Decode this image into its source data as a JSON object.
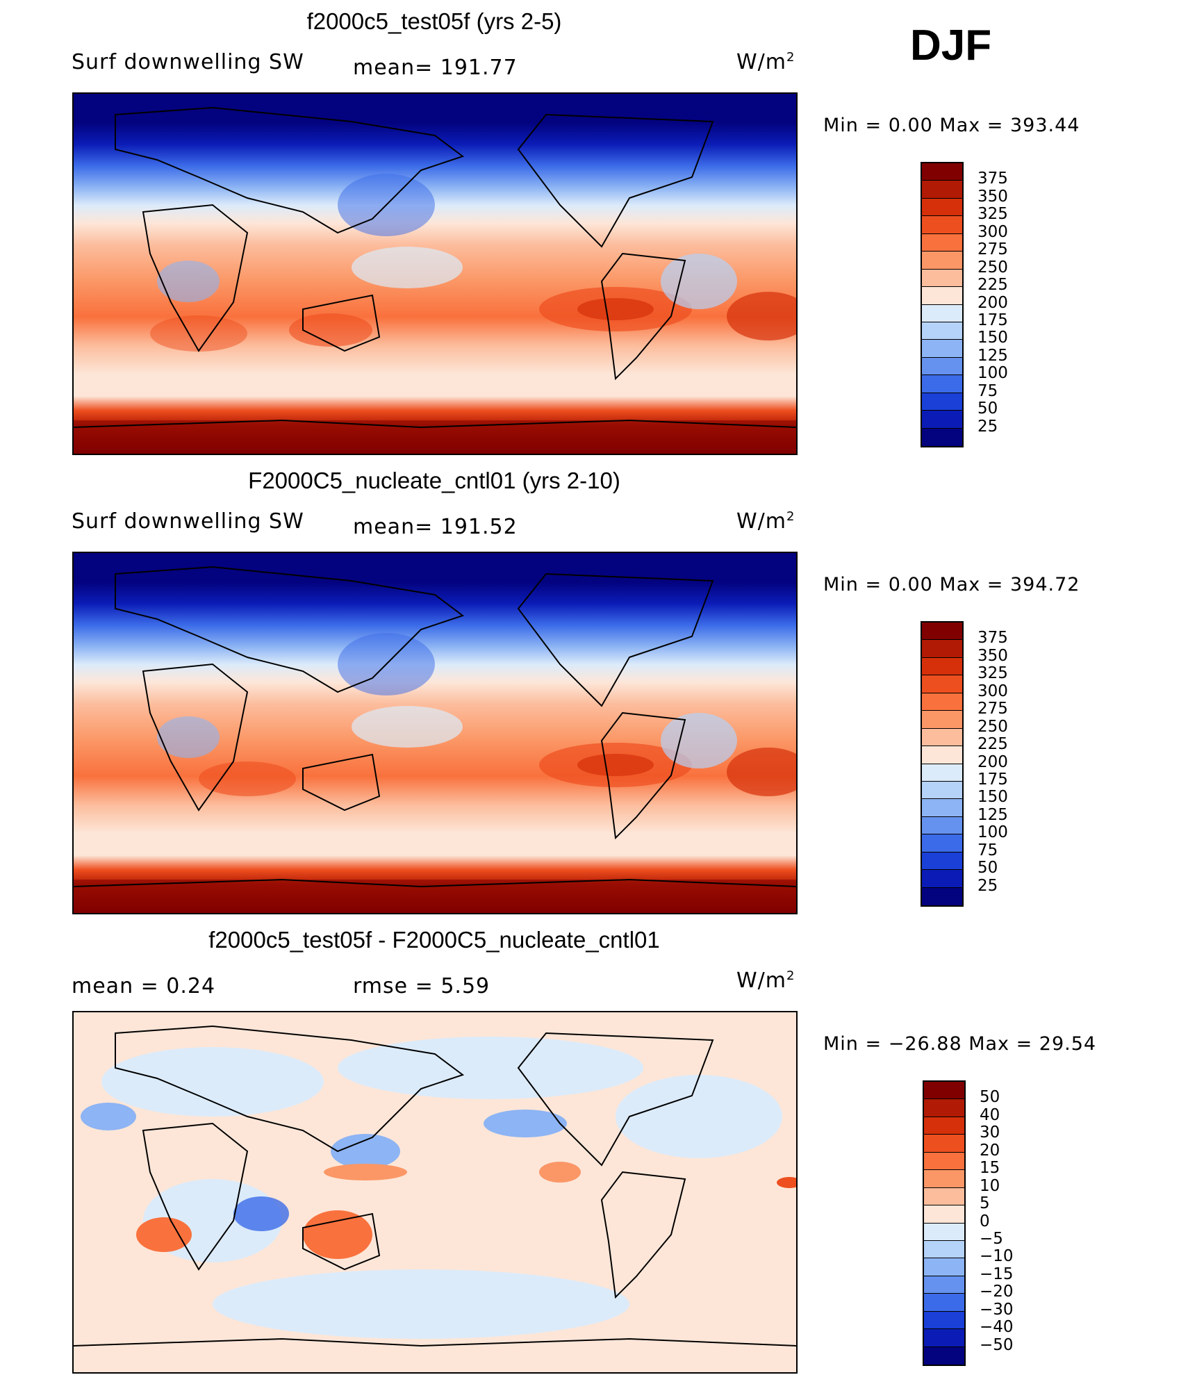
{
  "season": "DJF",
  "panels": [
    {
      "title": "f2000c5_test05f (yrs 2-5)",
      "left_label": "Surf  downwelling  SW",
      "center_label": "mean=  191.77",
      "units_base": "W/m",
      "units_exp": "2",
      "min_max": "Min  =      0.00  Max  =  393.44"
    },
    {
      "title": "F2000C5_nucleate_cntl01 (yrs 2-10)",
      "left_label": "Surf  downwelling  SW",
      "center_label": "mean=  191.52",
      "units_base": "W/m",
      "units_exp": "2",
      "min_max": "Min  =      0.00  Max  =  394.72"
    },
    {
      "title": "f2000c5_test05f - F2000C5_nucleate_cntl01",
      "left_label": "mean  =      0.24",
      "center_label": "rmse  =      5.59",
      "units_base": "W/m",
      "units_exp": "2",
      "min_max": "Min  = −26.88  Max  =    29.54"
    }
  ],
  "chart_data": [
    {
      "type": "heatmap",
      "title": "f2000c5_test05f (yrs 2-5)",
      "variable": "Surf downwelling SW",
      "units": "W/m2",
      "mean": 191.77,
      "min": 0.0,
      "max": 393.44,
      "colorbar_levels": [
        375,
        350,
        325,
        300,
        275,
        250,
        225,
        200,
        175,
        150,
        125,
        100,
        75,
        50,
        25
      ],
      "colorbar_labels": [
        "375",
        "350",
        "325",
        "300",
        "275",
        "250",
        "225",
        "200",
        "175",
        "150",
        "125",
        "100",
        "75",
        "50",
        "25"
      ],
      "colorbar_colors": [
        "#800000",
        "#b11a04",
        "#d6300a",
        "#ee4f1f",
        "#f9713d",
        "#fb9766",
        "#fcbd9d",
        "#fde6d8",
        "#dcebfa",
        "#b5d2f8",
        "#8db4f4",
        "#6592ef",
        "#3b6be8",
        "#1a40d8",
        "#0b1cb6",
        "#03027f"
      ]
    },
    {
      "type": "heatmap",
      "title": "F2000C5_nucleate_cntl01 (yrs 2-10)",
      "variable": "Surf downwelling SW",
      "units": "W/m2",
      "mean": 191.52,
      "min": 0.0,
      "max": 394.72,
      "colorbar_levels": [
        375,
        350,
        325,
        300,
        275,
        250,
        225,
        200,
        175,
        150,
        125,
        100,
        75,
        50,
        25
      ],
      "colorbar_labels": [
        "375",
        "350",
        "325",
        "300",
        "275",
        "250",
        "225",
        "200",
        "175",
        "150",
        "125",
        "100",
        "75",
        "50",
        "25"
      ],
      "colorbar_colors": [
        "#800000",
        "#b11a04",
        "#d6300a",
        "#ee4f1f",
        "#f9713d",
        "#fb9766",
        "#fcbd9d",
        "#fde6d8",
        "#dcebfa",
        "#b5d2f8",
        "#8db4f4",
        "#6592ef",
        "#3b6be8",
        "#1a40d8",
        "#0b1cb6",
        "#03027f"
      ]
    },
    {
      "type": "heatmap",
      "title": "f2000c5_test05f - F2000C5_nucleate_cntl01",
      "units": "W/m2",
      "mean": 0.24,
      "rmse": 5.59,
      "min": -26.88,
      "max": 29.54,
      "colorbar_levels": [
        50,
        40,
        30,
        20,
        15,
        10,
        5,
        0,
        -5,
        -10,
        -15,
        -20,
        -30,
        -40,
        -50
      ],
      "colorbar_labels": [
        "50",
        "40",
        "30",
        "20",
        "15",
        "10",
        "5",
        "0",
        "−5",
        "−10",
        "−15",
        "−20",
        "−30",
        "−40",
        "−50"
      ],
      "colorbar_colors": [
        "#800000",
        "#b11a04",
        "#d6300a",
        "#ee4f1f",
        "#f9713d",
        "#fb9766",
        "#fcbd9d",
        "#fde6d8",
        "#dcebfa",
        "#b5d2f8",
        "#8db4f4",
        "#6592ef",
        "#3b6be8",
        "#1a40d8",
        "#0b1cb6",
        "#03027f"
      ]
    }
  ]
}
